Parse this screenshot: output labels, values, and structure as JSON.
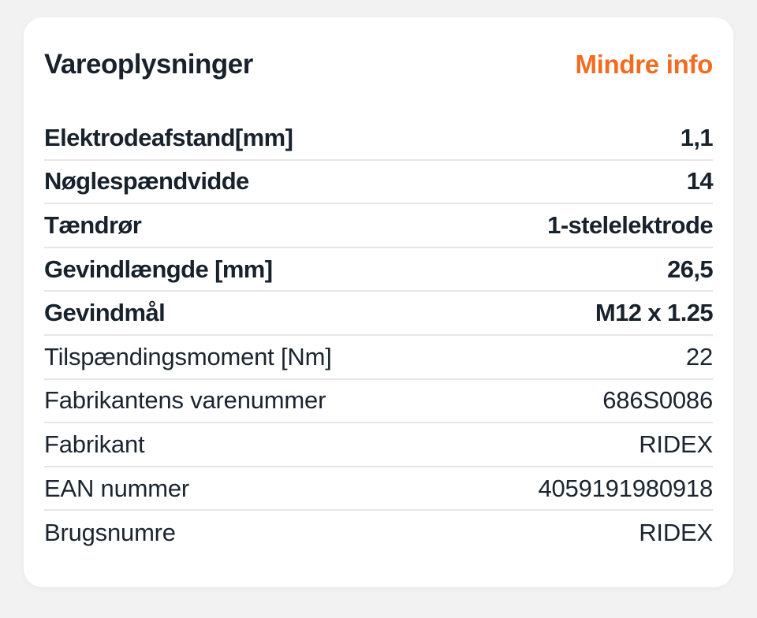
{
  "colors": {
    "page_background": "#f2f2f2",
    "card_background": "#ffffff",
    "text_primary": "#18222c",
    "text_secondary": "#1b2530",
    "accent_orange": "#f16c20",
    "divider": "#e6e6e6"
  },
  "card": {
    "header": {
      "title": "Vareoplysninger",
      "toggle_label": "Mindre info"
    },
    "specs": [
      {
        "label": "Elektrodeafstand[mm]",
        "value": "1,1",
        "emphasis": true
      },
      {
        "label": "Nøglespændvidde",
        "value": "14",
        "emphasis": true
      },
      {
        "label": "Tændrør",
        "value": "1-stelelektrode",
        "emphasis": true
      },
      {
        "label": "Gevindlængde [mm]",
        "value": "26,5",
        "emphasis": true
      },
      {
        "label": "Gevindmål",
        "value": "M12 x 1.25",
        "emphasis": true
      },
      {
        "label": "Tilspændingsmoment [Nm]",
        "value": "22",
        "emphasis": false
      },
      {
        "label": "Fabrikantens varenummer",
        "value": "686S0086",
        "emphasis": false
      },
      {
        "label": "Fabrikant",
        "value": "RIDEX",
        "emphasis": false
      },
      {
        "label": "EAN nummer",
        "value": "4059191980918",
        "emphasis": false
      },
      {
        "label": "Brugsnumre",
        "value": "RIDEX",
        "emphasis": false
      }
    ]
  }
}
